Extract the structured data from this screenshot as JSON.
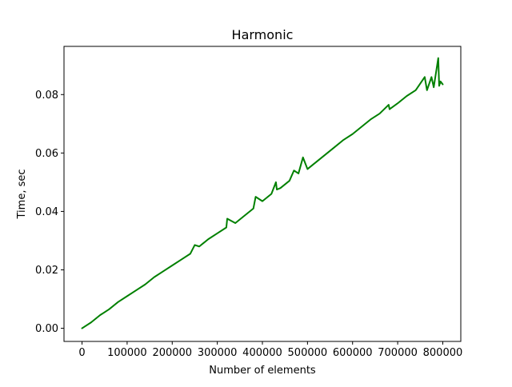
{
  "chart_data": {
    "type": "line",
    "title": "Harmonic",
    "xlabel": "Number of elements",
    "ylabel": "Time, sec",
    "xlim": [
      -40000,
      840000
    ],
    "ylim": [
      -0.0045,
      0.0965
    ],
    "x_ticks": [
      0,
      100000,
      200000,
      300000,
      400000,
      500000,
      600000,
      700000,
      800000
    ],
    "x_tick_labels": [
      "0",
      "100000",
      "200000",
      "300000",
      "400000",
      "500000",
      "600000",
      "700000",
      "800000"
    ],
    "y_ticks": [
      0.0,
      0.02,
      0.04,
      0.06,
      0.08
    ],
    "y_tick_labels": [
      "0.00",
      "0.02",
      "0.04",
      "0.06",
      "0.08"
    ],
    "grid": false,
    "legend": "none",
    "series": [
      {
        "color": "#008000",
        "x": [
          0,
          20000,
          40000,
          60000,
          80000,
          100000,
          120000,
          140000,
          160000,
          180000,
          200000,
          220000,
          240000,
          250000,
          260000,
          280000,
          300000,
          320000,
          322000,
          340000,
          360000,
          380000,
          385000,
          400000,
          420000,
          430000,
          432000,
          440000,
          460000,
          470000,
          480000,
          490000,
          500000,
          520000,
          540000,
          560000,
          580000,
          600000,
          620000,
          640000,
          660000,
          680000,
          682000,
          700000,
          720000,
          740000,
          760000,
          765000,
          775000,
          780000,
          790000,
          792000,
          795000,
          800000
        ],
        "y": [
          0.0,
          0.002,
          0.0045,
          0.0065,
          0.009,
          0.011,
          0.013,
          0.015,
          0.0175,
          0.0195,
          0.0215,
          0.0235,
          0.0255,
          0.0285,
          0.028,
          0.0305,
          0.0325,
          0.0345,
          0.0375,
          0.036,
          0.0385,
          0.041,
          0.045,
          0.0435,
          0.046,
          0.05,
          0.0475,
          0.048,
          0.0505,
          0.054,
          0.053,
          0.0585,
          0.0545,
          0.057,
          0.0595,
          0.062,
          0.0645,
          0.0665,
          0.069,
          0.0715,
          0.0735,
          0.0765,
          0.075,
          0.077,
          0.0795,
          0.0815,
          0.086,
          0.0815,
          0.086,
          0.0825,
          0.0925,
          0.083,
          0.0845,
          0.0835
        ]
      }
    ]
  }
}
